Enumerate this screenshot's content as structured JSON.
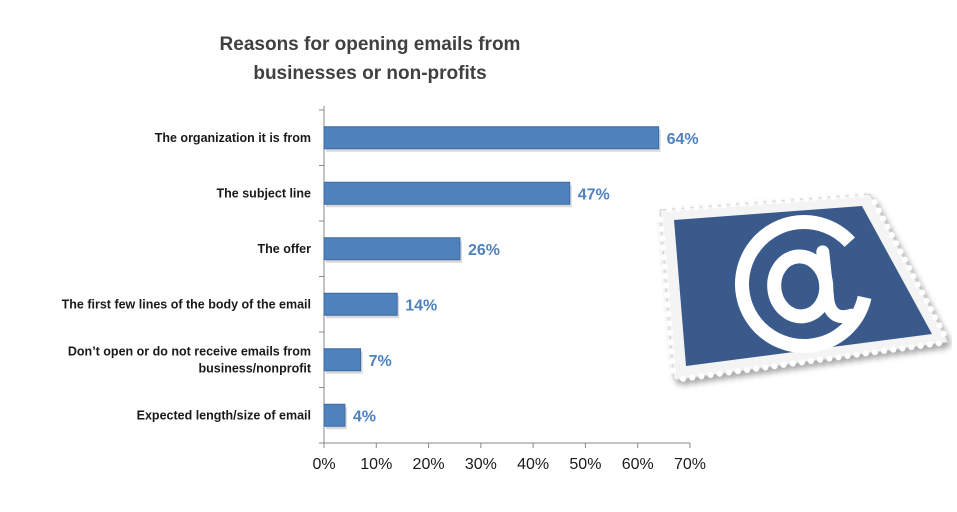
{
  "title_lines": [
    "Reasons for opening emails from",
    "businesses or non-profits"
  ],
  "colors": {
    "bar": "#4f81bd",
    "bar_edge": "#3c6aa4",
    "value_text": "#4f81bd",
    "stamp_blue": "#3a5a8c"
  },
  "stamp_icon": "at-sign-stamp-icon",
  "chart_data": {
    "type": "bar",
    "orientation": "horizontal",
    "title": "Reasons for opening emails from businesses or non-profits",
    "categories": [
      [
        "The organization it is from"
      ],
      [
        "The subject line"
      ],
      [
        "The offer"
      ],
      [
        "The first few lines of the body of the email"
      ],
      [
        "Don’t open or do not receive emails from",
        "business/nonprofit"
      ],
      [
        "Expected length/size of email"
      ]
    ],
    "values": [
      64,
      47,
      26,
      14,
      7,
      4
    ],
    "value_labels": [
      "64%",
      "47%",
      "26%",
      "14%",
      "7%",
      "4%"
    ],
    "xlim": [
      0,
      70
    ],
    "xticks": [
      0,
      10,
      20,
      30,
      40,
      50,
      60,
      70
    ],
    "xtick_labels": [
      "0%",
      "10%",
      "20%",
      "30%",
      "40%",
      "50%",
      "60%",
      "70%"
    ],
    "grid": false,
    "legend": "none"
  }
}
